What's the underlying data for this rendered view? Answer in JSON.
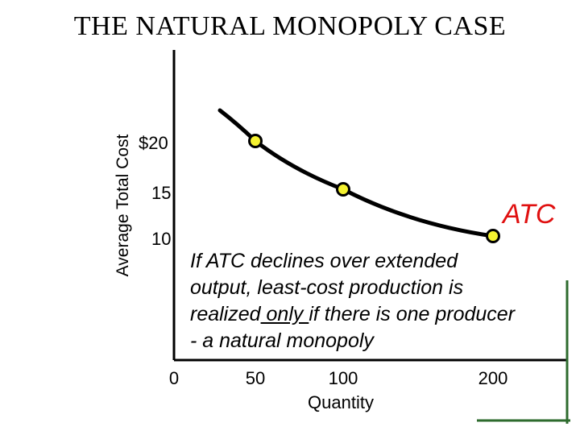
{
  "title": "THE NATURAL MONOPOLY CASE",
  "chart_data": {
    "type": "line",
    "title": "THE NATURAL MONOPOLY CASE",
    "xlabel": "Quantity",
    "ylabel": "Average Total Cost",
    "x_ticks": [
      "0",
      "50",
      "100",
      "200"
    ],
    "y_ticks": [
      "$20",
      "15",
      "10"
    ],
    "series": [
      {
        "name": "ATC",
        "x": [
          50,
          100,
          200
        ],
        "y": [
          20,
          15,
          10
        ],
        "color": "#000000",
        "marker_color": "#f5f230"
      }
    ],
    "grid": false,
    "label_color": "#e01010"
  },
  "annotation": {
    "line1": "If ATC declines over extended",
    "line2": "output, least-cost production is",
    "line3_a": "realized",
    "line3_u": " only ",
    "line3_b": "if there is one producer",
    "line4": "- a natural monopoly"
  }
}
